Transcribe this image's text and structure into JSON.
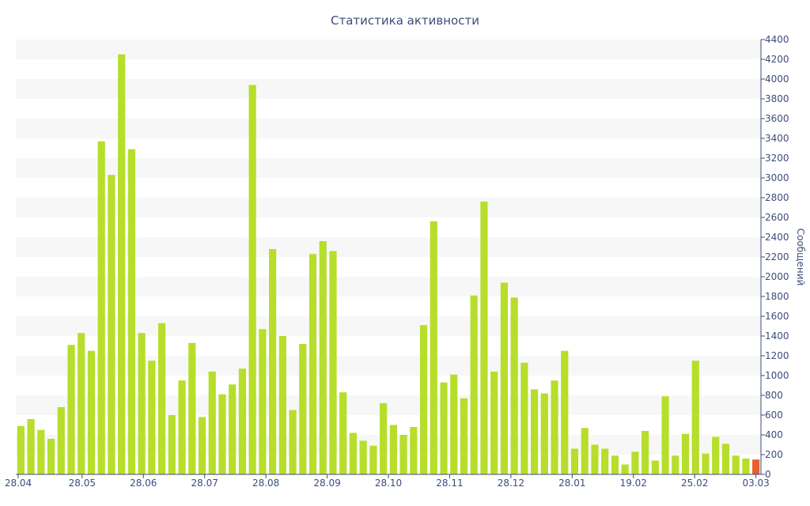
{
  "chart_data": {
    "type": "bar",
    "title": "Статистика активности",
    "ylabel": "Сообщений",
    "xlabel": "",
    "ylim": [
      0,
      4400
    ],
    "yticks": [
      0,
      200,
      400,
      600,
      800,
      1000,
      1200,
      1400,
      1600,
      1800,
      2000,
      2200,
      2400,
      2600,
      2800,
      3000,
      3200,
      3400,
      3600,
      3800,
      4000,
      4200,
      4400
    ],
    "y_axis_position": "right",
    "grid": "horizontal alternating bands",
    "xtick_labels": [
      "28.04",
      "28.05",
      "28.06",
      "28.07",
      "28.08",
      "28.09",
      "28.10",
      "28.11",
      "28.12",
      "28.01",
      "19.02",
      "25.02",
      "03.03"
    ],
    "values": [
      490,
      560,
      450,
      360,
      680,
      1310,
      1430,
      1250,
      3370,
      3030,
      4250,
      3290,
      1430,
      1150,
      1530,
      600,
      950,
      1330,
      580,
      1040,
      810,
      910,
      1070,
      3940,
      1470,
      2280,
      1400,
      650,
      1320,
      2230,
      2360,
      2260,
      830,
      420,
      340,
      290,
      720,
      500,
      400,
      480,
      1510,
      2560,
      930,
      1010,
      770,
      1810,
      2760,
      1040,
      1940,
      1790,
      1130,
      860,
      820,
      950,
      1250,
      260,
      470,
      300,
      260,
      190,
      100,
      230,
      440,
      140,
      790,
      190,
      410,
      1150,
      210,
      380,
      310,
      190,
      160,
      150
    ],
    "colors": {
      "bar": "#b6de2a",
      "highlight": "#e8602c",
      "band": "#f7f7f7",
      "axis": "#3e4c7a"
    },
    "highlight_last": true
  }
}
